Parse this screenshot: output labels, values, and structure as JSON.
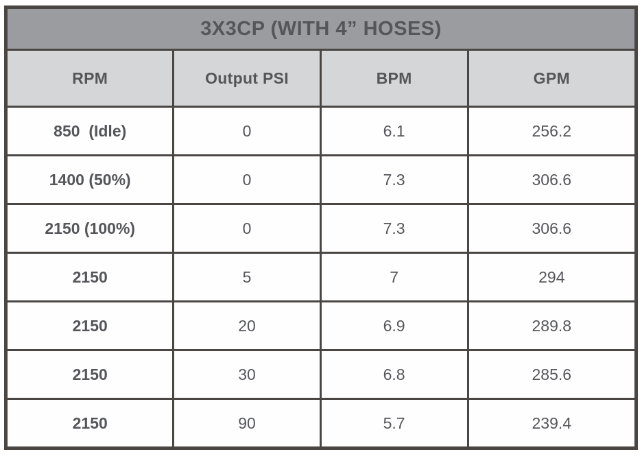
{
  "table": {
    "title": "3X3CP (WITH 4” HOSES)",
    "columns": [
      "RPM",
      "Output PSI",
      "BPM",
      "GPM"
    ],
    "rows": [
      {
        "rpm": "850  (Idle)",
        "psi": "0",
        "bpm": "6.1",
        "gpm": "256.2"
      },
      {
        "rpm": "1400 (50%)",
        "psi": "0",
        "bpm": "7.3",
        "gpm": "306.6"
      },
      {
        "rpm": "2150 (100%)",
        "psi": "0",
        "bpm": "7.3",
        "gpm": "306.6"
      },
      {
        "rpm": "2150",
        "psi": "5",
        "bpm": "7",
        "gpm": "294"
      },
      {
        "rpm": "2150",
        "psi": "20",
        "bpm": "6.9",
        "gpm": "289.8"
      },
      {
        "rpm": "2150",
        "psi": "30",
        "bpm": "6.8",
        "gpm": "285.6"
      },
      {
        "rpm": "2150",
        "psi": "90",
        "bpm": "5.7",
        "gpm": "239.4"
      }
    ]
  },
  "colors": {
    "border": "#4a4644",
    "title_background": "#9b9ca0",
    "title_text": "#fdfdfd",
    "header_background": "#d5d6d7",
    "body_text": "#55565a",
    "row_background": "#fefefe",
    "page_background": "#ffffff"
  }
}
